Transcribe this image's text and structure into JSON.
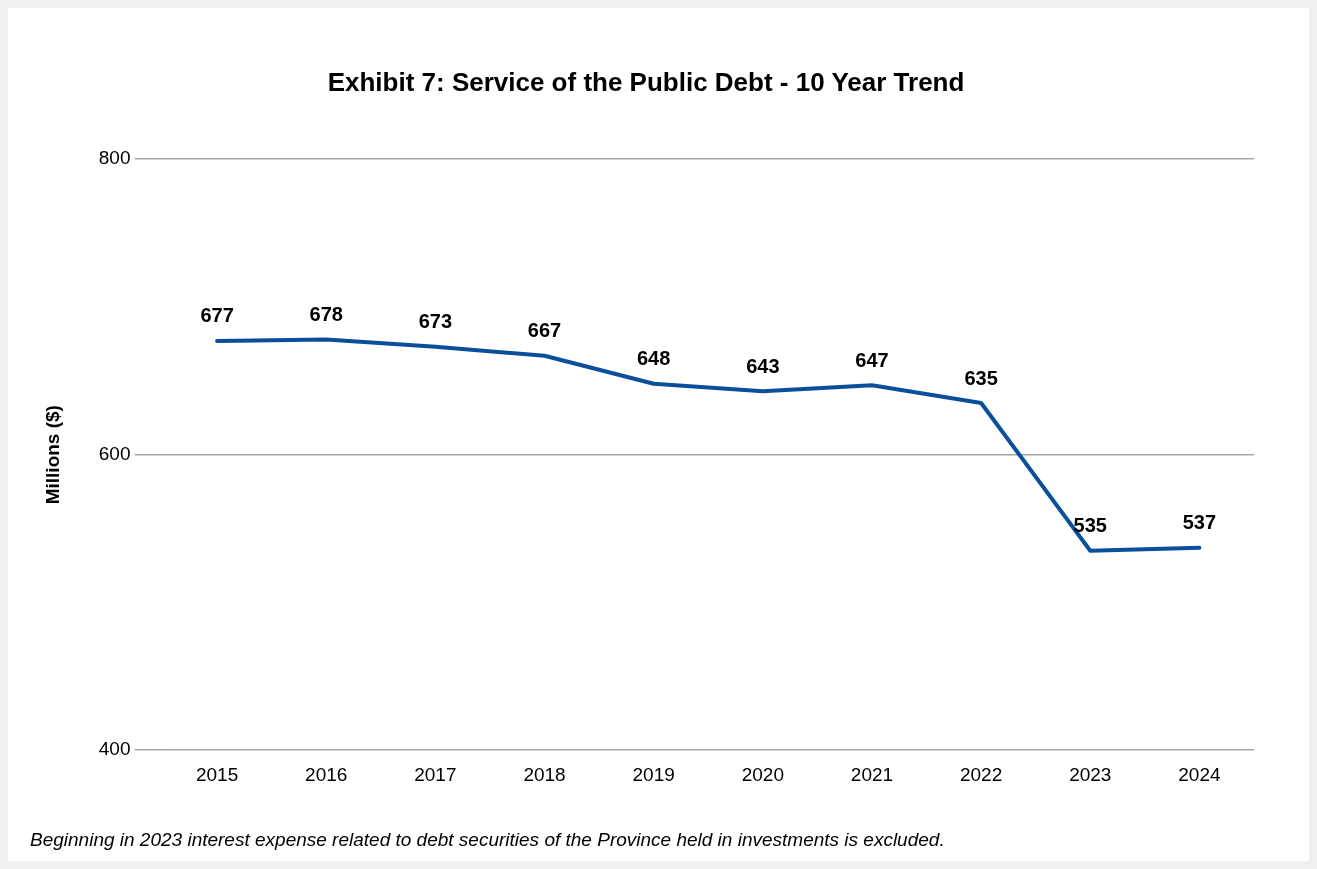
{
  "chart_data": {
    "type": "line",
    "title": "Exhibit 7: Service of the Public Debt - 10 Year Trend",
    "ylabel": "Millions ($)",
    "categories": [
      "2015",
      "2016",
      "2017",
      "2018",
      "2019",
      "2020",
      "2021",
      "2022",
      "2023",
      "2024"
    ],
    "series": [
      {
        "color": "#0b4f9c",
        "values": [
          677,
          678,
          673,
          667,
          648,
          643,
          647,
          635,
          535,
          537
        ]
      }
    ],
    "ylim": [
      400,
      800
    ],
    "yticks": [
      400,
      600,
      800
    ],
    "grid": "y",
    "legend": false,
    "marker": "none",
    "line_style": "solid",
    "data_labels": true,
    "annotations": [
      "Beginning in 2023 interest expense related to debt securities of the Province held in investments is excluded."
    ]
  }
}
